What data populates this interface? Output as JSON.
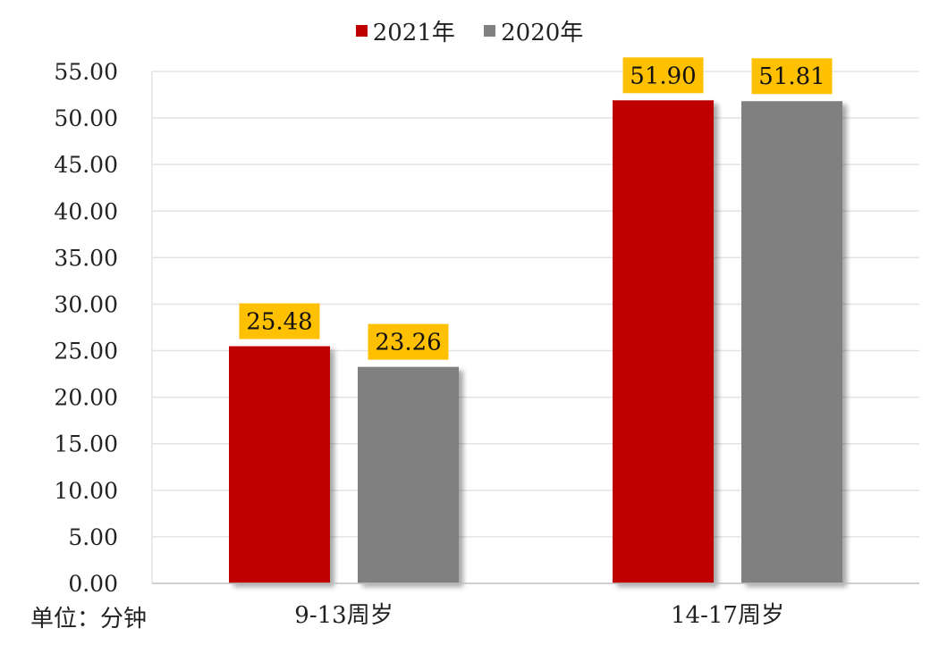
{
  "chart_data": {
    "type": "bar",
    "categories": [
      "9-13周岁",
      "14-17周岁"
    ],
    "series": [
      {
        "name": "2021年",
        "values": [
          25.48,
          51.9
        ],
        "color": "#C00000"
      },
      {
        "name": "2020年",
        "values": [
          23.26,
          51.81
        ],
        "color": "#808080"
      }
    ],
    "data_labels": [
      [
        "25.48",
        "51.90"
      ],
      [
        "23.26",
        "51.81"
      ]
    ],
    "ylim": [
      0,
      55
    ],
    "y_ticks": [
      "0.00",
      "5.00",
      "10.00",
      "15.00",
      "20.00",
      "25.00",
      "30.00",
      "35.00",
      "40.00",
      "45.00",
      "50.00",
      "55.00"
    ],
    "grid": true,
    "legend_position": "top-center",
    "data_label_bg": "#FFC000",
    "unit_note": "单位：分钟"
  }
}
